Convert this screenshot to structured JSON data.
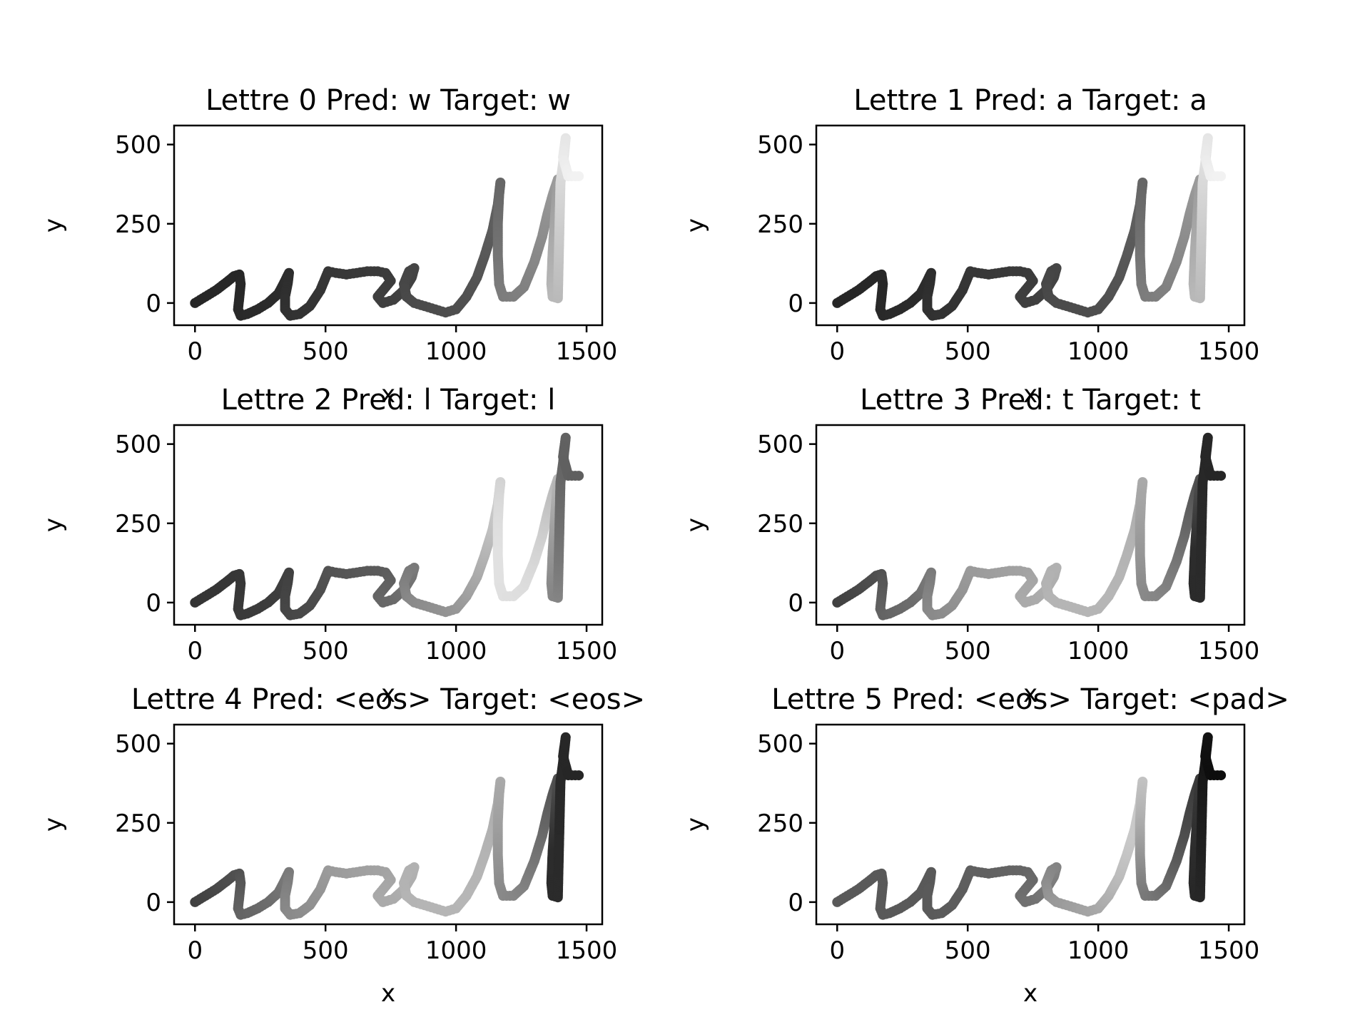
{
  "chart_data": [
    {
      "type": "scatter",
      "title": "Lettre 0 Pred: w Target: w",
      "xlabel": "x",
      "ylabel": "y",
      "xlim": [
        -80,
        1560
      ],
      "ylim": [
        -70,
        560
      ],
      "xticks": [
        "0",
        "500",
        "1000",
        "1500"
      ],
      "yticks": [
        "0",
        "250",
        "500"
      ],
      "shading": "ending"
    },
    {
      "type": "scatter",
      "title": "Lettre 1 Pred: a Target: a",
      "xlabel": "x",
      "ylabel": "y",
      "xlim": [
        -80,
        1560
      ],
      "ylim": [
        -70,
        560
      ],
      "xticks": [
        "0",
        "500",
        "1000",
        "1500"
      ],
      "yticks": [
        "0",
        "250",
        "500"
      ],
      "shading": "ending"
    },
    {
      "type": "scatter",
      "title": "Lettre 2 Pred: l Target: l",
      "xlabel": "x",
      "ylabel": "y",
      "xlim": [
        -80,
        1560
      ],
      "ylim": [
        -70,
        560
      ],
      "xticks": [
        "0",
        "500",
        "1000",
        "1500"
      ],
      "yticks": [
        "0",
        "250",
        "500"
      ],
      "shading": "middle"
    },
    {
      "type": "scatter",
      "title": "Lettre 3 Pred: t Target: t",
      "xlabel": "x",
      "ylabel": "y",
      "xlim": [
        -80,
        1560
      ],
      "ylim": [
        -70,
        560
      ],
      "xticks": [
        "0",
        "500",
        "1000",
        "1500"
      ],
      "yticks": [
        "0",
        "250",
        "500"
      ],
      "shading": "late"
    },
    {
      "type": "scatter",
      "title": "Lettre 4 Pred: <eos> Target: <eos>",
      "xlabel": "x",
      "ylabel": "y",
      "xlim": [
        -80,
        1560
      ],
      "ylim": [
        -70,
        560
      ],
      "xticks": [
        "0",
        "500",
        "1000",
        "1500"
      ],
      "yticks": [
        "0",
        "250",
        "500"
      ],
      "shading": "late"
    },
    {
      "type": "scatter",
      "title": "Lettre 5 Pred: <eos> Target: <pad>",
      "xlabel": "x",
      "ylabel": "y",
      "xlim": [
        -80,
        1560
      ],
      "ylim": [
        -70,
        560
      ],
      "xticks": [
        "0",
        "500",
        "1000",
        "1500"
      ],
      "yticks": [
        "0",
        "250",
        "500"
      ],
      "shading": "reverse"
    }
  ],
  "stroke_path": [
    [
      0,
      0
    ],
    [
      40,
      20
    ],
    [
      80,
      40
    ],
    [
      120,
      65
    ],
    [
      150,
      85
    ],
    [
      170,
      90
    ],
    [
      175,
      60
    ],
    [
      170,
      20
    ],
    [
      165,
      -20
    ],
    [
      175,
      -40
    ],
    [
      200,
      -35
    ],
    [
      240,
      -20
    ],
    [
      280,
      0
    ],
    [
      320,
      30
    ],
    [
      345,
      70
    ],
    [
      360,
      95
    ],
    [
      355,
      60
    ],
    [
      345,
      20
    ],
    [
      345,
      -20
    ],
    [
      365,
      -40
    ],
    [
      400,
      -35
    ],
    [
      440,
      -10
    ],
    [
      480,
      40
    ],
    [
      500,
      80
    ],
    [
      510,
      100
    ],
    [
      540,
      95
    ],
    [
      580,
      90
    ],
    [
      620,
      95
    ],
    [
      660,
      100
    ],
    [
      700,
      100
    ],
    [
      730,
      95
    ],
    [
      750,
      70
    ],
    [
      720,
      40
    ],
    [
      700,
      20
    ],
    [
      720,
      0
    ],
    [
      760,
      10
    ],
    [
      800,
      40
    ],
    [
      830,
      80
    ],
    [
      840,
      110
    ],
    [
      820,
      100
    ],
    [
      800,
      60
    ],
    [
      810,
      20
    ],
    [
      840,
      0
    ],
    [
      880,
      -10
    ],
    [
      920,
      -20
    ],
    [
      960,
      -30
    ],
    [
      1000,
      -20
    ],
    [
      1040,
      20
    ],
    [
      1080,
      80
    ],
    [
      1110,
      150
    ],
    [
      1140,
      230
    ],
    [
      1160,
      310
    ],
    [
      1170,
      380
    ],
    [
      1165,
      340
    ],
    [
      1160,
      250
    ],
    [
      1160,
      150
    ],
    [
      1165,
      60
    ],
    [
      1180,
      20
    ],
    [
      1220,
      20
    ],
    [
      1260,
      50
    ],
    [
      1300,
      130
    ],
    [
      1330,
      210
    ],
    [
      1350,
      280
    ],
    [
      1370,
      340
    ],
    [
      1390,
      390
    ],
    [
      1380,
      280
    ],
    [
      1370,
      160
    ],
    [
      1365,
      60
    ],
    [
      1370,
      20
    ],
    [
      1390,
      15
    ],
    [
      1400,
      380
    ],
    [
      1410,
      440
    ],
    [
      1420,
      520
    ],
    [
      1410,
      460
    ],
    [
      1430,
      400
    ],
    [
      1470,
      400
    ]
  ]
}
